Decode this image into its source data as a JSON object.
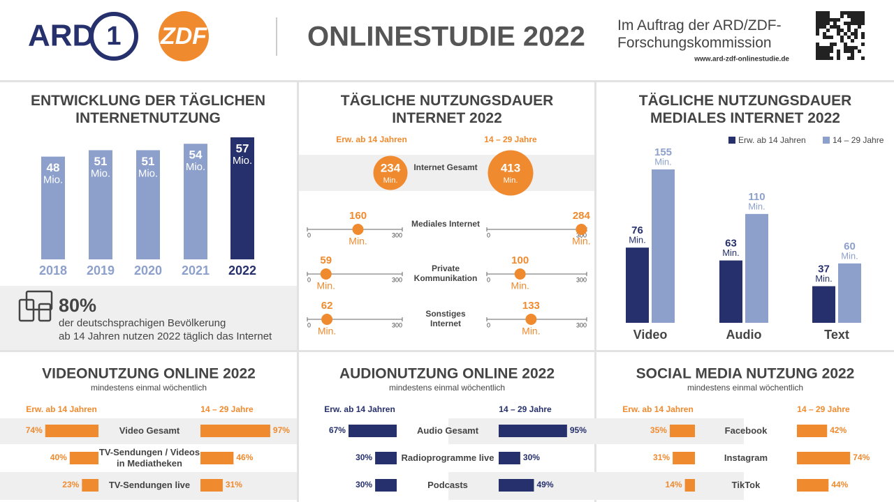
{
  "header": {
    "logo_ard": "ARD",
    "logo_ard_number": "1",
    "logo_zdf": "ZDF",
    "title": "ONLINESTUDIE 2022",
    "commission": "Im Auftrag der ARD/ZDF-Forschungskommission",
    "url": "www.ard-zdf-onlinestudie.de"
  },
  "chart_data": [
    {
      "type": "bar",
      "title": "ENTWICKLUNG DER TÄGLICHEN INTERNETNUTZUNG",
      "categories": [
        "2018",
        "2019",
        "2020",
        "2021",
        "2022"
      ],
      "values": [
        48,
        51,
        51,
        54,
        57
      ],
      "unit": "Mio.",
      "colors": [
        "#8da0cc",
        "#8da0cc",
        "#8da0cc",
        "#8da0cc",
        "#26306c"
      ],
      "annotation": {
        "headline": "80%",
        "lines": [
          "der deutschsprachigen Bevölkerung",
          "ab 14 Jahren nutzen 2022 täglich das Internet"
        ]
      }
    },
    {
      "type": "dot",
      "title": "TÄGLICHE NUTZUNGSDAUER INTERNET 2022",
      "categories": [
        "Internet Gesamt",
        "Mediales Internet",
        "Private Kommunikation",
        "Sonstiges Internet"
      ],
      "unit": "Min.",
      "xlim": [
        0,
        300
      ],
      "xticks": [
        0,
        300
      ],
      "series": [
        {
          "name": "Erw. ab 14 Jahren",
          "color": "#f08a2e",
          "values": [
            234,
            160,
            59,
            62
          ]
        },
        {
          "name": "14 – 29 Jahre",
          "color": "#f08a2e",
          "values": [
            413,
            284,
            100,
            133
          ]
        }
      ]
    },
    {
      "type": "grouped-bar",
      "title": "TÄGLICHE NUTZUNGSDAUER MEDIALES INTERNET 2022",
      "categories": [
        "Video",
        "Audio",
        "Text"
      ],
      "unit": "Min.",
      "series": [
        {
          "name": "Erw. ab 14 Jahren",
          "color": "#26306c",
          "values": [
            76,
            63,
            37
          ]
        },
        {
          "name": "14 – 29 Jahre",
          "color": "#8da0cc",
          "values": [
            155,
            110,
            60
          ]
        }
      ]
    },
    {
      "type": "butterfly",
      "title": "VIDEONUTZUNG ONLINE 2022",
      "subtitle": "mindestens einmal wöchentlich",
      "categories": [
        "Video Gesamt",
        "TV-Sendungen / Videos in Mediatheken",
        "TV-Sendungen live"
      ],
      "series": [
        {
          "name": "Erw. ab 14 Jahren",
          "color": "#f08a2e",
          "values": [
            74,
            40,
            23
          ],
          "value_labels": [
            "74%",
            "40%",
            "23%"
          ]
        },
        {
          "name": "14 – 29 Jahre",
          "color": "#f08a2e",
          "values": [
            97,
            46,
            31
          ],
          "value_labels": [
            "97%",
            "46%",
            "31%"
          ]
        }
      ]
    },
    {
      "type": "butterfly",
      "title": "AUDIONUTZUNG ONLINE 2022",
      "subtitle": "mindestens einmal wöchentlich",
      "categories": [
        "Audio Gesamt",
        "Radioprogramme live",
        "Podcasts"
      ],
      "series": [
        {
          "name": "Erw. ab 14 Jahren",
          "color": "#26306c",
          "values": [
            67,
            30,
            30
          ],
          "value_labels": [
            "67%",
            "30%",
            "30%"
          ]
        },
        {
          "name": "14 – 29 Jahre",
          "color": "#26306c",
          "values": [
            95,
            30,
            49
          ],
          "value_labels": [
            "95%",
            "30%",
            "49%"
          ]
        }
      ]
    },
    {
      "type": "butterfly",
      "title": "SOCIAL MEDIA NUTZUNG 2022",
      "subtitle": "mindestens einmal wöchentlich",
      "categories": [
        "Facebook",
        "Instagram",
        "TikTok"
      ],
      "series": [
        {
          "name": "Erw. ab 14 Jahren",
          "color": "#f08a2e",
          "values": [
            35,
            31,
            14
          ],
          "value_labels": [
            "35%",
            "31%",
            "14%"
          ]
        },
        {
          "name": "14 – 29 Jahre",
          "color": "#f08a2e",
          "values": [
            42,
            74,
            44
          ],
          "value_labels": [
            "42%",
            "74%",
            "44%"
          ]
        }
      ]
    }
  ]
}
